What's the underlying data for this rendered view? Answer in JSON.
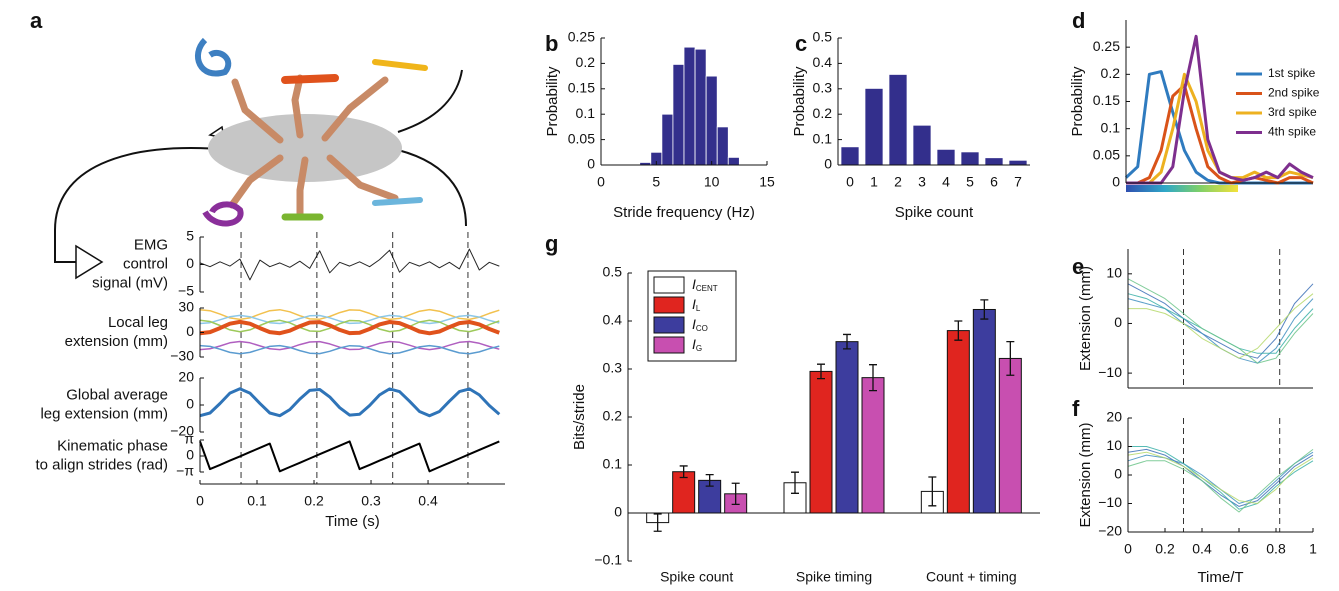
{
  "chart_data": [
    {
      "panel": "a",
      "type": "line",
      "ylabel": [
        "EMG",
        "control",
        "signal (mV)"
      ],
      "x": [
        0,
        0.0175,
        0.035,
        0.0525,
        0.07,
        0.0875,
        0.105,
        0.1225,
        0.14,
        0.1575,
        0.175,
        0.1925,
        0.21,
        0.2275,
        0.245,
        0.2625,
        0.28,
        0.2975,
        0.315,
        0.3325,
        0.35,
        0.3675,
        0.385,
        0.4025,
        0.42,
        0.4375,
        0.455,
        0.4725,
        0.49,
        0.5075,
        0.525
      ],
      "xlim": [
        0,
        0.535
      ],
      "ylim": [
        -5,
        5
      ],
      "yticks": [
        {
          "value": -5,
          "label": "−5"
        },
        0,
        5
      ],
      "vlines": [
        0.072,
        0.205,
        0.338,
        0.47
      ],
      "series": [
        {
          "color": "#000000",
          "width": 1,
          "values": [
            0.3,
            -0.4,
            0.5,
            -0.3,
            1,
            -2.8,
            0.8,
            -0.4,
            0.3,
            -0.5,
            0.6,
            -0.7,
            2.5,
            -1.5,
            0.4,
            -0.3,
            0.5,
            -0.4,
            0.9,
            2.6,
            -1.4,
            0.4,
            -0.3,
            0.5,
            -0.6,
            0.4,
            -0.8,
            2.8,
            -1,
            0.4,
            -0.3
          ]
        }
      ]
    },
    {
      "type": "line",
      "ylabel": [
        "Local leg",
        "extension (mm)"
      ],
      "x": [
        0,
        0.0175,
        0.035,
        0.0525,
        0.07,
        0.0875,
        0.105,
        0.1225,
        0.14,
        0.1575,
        0.175,
        0.1925,
        0.21,
        0.2275,
        0.245,
        0.2625,
        0.28,
        0.2975,
        0.315,
        0.3325,
        0.35,
        0.3675,
        0.385,
        0.4025,
        0.42,
        0.4375,
        0.455,
        0.4725,
        0.49,
        0.5075,
        0.525
      ],
      "xlim": [
        0,
        0.535
      ],
      "ylim": [
        -30,
        30
      ],
      "yticks": [
        {
          "value": -30,
          "label": "−30"
        },
        0,
        30
      ],
      "series": [
        {
          "color": "#f2c14e",
          "width": 1.5,
          "values": [
            27.9,
            26.7,
            22.5,
            17.9,
            16,
            17.9,
            22.5,
            26.7,
            27.9,
            25.3,
            20.6,
            16.7,
            16.3,
            19.6,
            24.4,
            27.7,
            27.3,
            23.4,
            18.7,
            16.1,
            17.3,
            21.5,
            26.1,
            28,
            26.1,
            21.5,
            17.3,
            16.1,
            18.7,
            23.4,
            27.3
          ]
        },
        {
          "color": "#8cc8e8",
          "width": 1.5,
          "values": [
            11,
            12,
            15.5,
            19.4,
            21,
            19.4,
            15.6,
            12,
            11,
            13.2,
            17.2,
            20.4,
            20.8,
            18,
            14,
            11.2,
            11.6,
            14.8,
            18.8,
            21,
            20,
            16.4,
            12.6,
            11,
            12.6,
            16.4,
            20,
            21,
            18.8,
            14.8,
            11.6
          ]
        },
        {
          "color": "#9dc95a",
          "width": 1.5,
          "values": [
            14.9,
            13.5,
            8.6,
            3.2,
            1,
            3.2,
            8.6,
            13.5,
            14.9,
            11.9,
            6.3,
            1.8,
            1.4,
            5.2,
            10.8,
            14.7,
            14.2,
            9.7,
            4.2,
            1.1,
            2.5,
            7.4,
            12.8,
            15,
            12.8,
            7.4,
            2.5,
            1.1,
            4.2,
            9.7,
            14.2
          ]
        },
        {
          "color": "#b05fc0",
          "width": 1.5,
          "values": [
            -21,
            -20,
            -16.5,
            -12.6,
            -11,
            -12.6,
            -16.4,
            -20,
            -21,
            -18.8,
            -14.8,
            -11.6,
            -11.2,
            -14,
            -18,
            -20.8,
            -20.4,
            -17.2,
            -13.2,
            -11,
            -12,
            -15.6,
            -19.4,
            -21,
            -19.4,
            -15.6,
            -12,
            -11,
            -13.2,
            -17.2,
            -20.4
          ]
        },
        {
          "color": "#5a9bd0",
          "width": 1.5,
          "values": [
            -16,
            -17,
            -20.5,
            -24.4,
            -26,
            -24.4,
            -20.6,
            -17,
            -16,
            -18.2,
            -22.2,
            -25.4,
            -25.8,
            -23,
            -19,
            -16.2,
            -16.6,
            -19.8,
            -23.8,
            -26,
            -25,
            -21.4,
            -17.6,
            -16,
            -17.6,
            -21.4,
            -25,
            -26,
            -23.8,
            -19.8,
            -16.6
          ]
        },
        {
          "color": "#e0521c",
          "width": 4,
          "values": [
            -0.9,
            0.5,
            5.4,
            10.8,
            13,
            10.8,
            5.4,
            0.5,
            -0.9,
            2.2,
            7.7,
            12.2,
            12.7,
            8.8,
            3.2,
            -0.7,
            -0.2,
            4.3,
            9.9,
            12.9,
            11.5,
            6.6,
            1.2,
            -1,
            1.2,
            6.6,
            11.5,
            12.9,
            9.9,
            4.3,
            -0.2
          ]
        }
      ]
    },
    {
      "type": "line",
      "ylabel": [
        "Global average",
        "leg extension (mm)"
      ],
      "x": [
        0,
        0.0175,
        0.035,
        0.0525,
        0.07,
        0.0875,
        0.105,
        0.1225,
        0.14,
        0.1575,
        0.175,
        0.1925,
        0.21,
        0.2275,
        0.245,
        0.2625,
        0.28,
        0.2975,
        0.315,
        0.3325,
        0.35,
        0.3675,
        0.385,
        0.4025,
        0.42,
        0.4375,
        0.455,
        0.4725,
        0.49,
        0.5075,
        0.525
      ],
      "xlim": [
        0,
        0.535
      ],
      "ylim": [
        -20,
        20
      ],
      "yticks": [
        {
          "value": -20,
          "label": "−20"
        },
        0,
        20
      ],
      "series": [
        {
          "color": "#2f74b8",
          "width": 3,
          "values": [
            -7.9,
            -5.9,
            1.1,
            8.8,
            12,
            8.8,
            1.2,
            -5.9,
            -7.9,
            -3.4,
            4.4,
            10.8,
            11.5,
            6,
            -2,
            -7.5,
            -6.8,
            -0.4,
            7.5,
            11.9,
            9.9,
            2.8,
            -4.8,
            -8,
            -4.8,
            2.8,
            9.9,
            11.9,
            7.5,
            -0.4,
            -6.8
          ]
        }
      ]
    },
    {
      "type": "line",
      "ylabel": [
        "Kinematic phase",
        "to align strides (rad)"
      ],
      "xlabel": "Time (s)",
      "x": [
        0,
        0.0175,
        0.035,
        0.0525,
        0.07,
        0.0875,
        0.105,
        0.1225,
        0.14,
        0.1575,
        0.175,
        0.1925,
        0.21,
        0.2275,
        0.245,
        0.2625,
        0.28,
        0.2975,
        0.315,
        0.3325,
        0.35,
        0.3675,
        0.385,
        0.4025,
        0.42,
        0.4375,
        0.455,
        0.4725,
        0.49,
        0.5075,
        0.525
      ],
      "xlim": [
        0,
        0.535
      ],
      "xticks": [
        0,
        0.1,
        0.2,
        0.3,
        0.4
      ],
      "ylim": [
        -3.1416,
        3.1416
      ],
      "yticks": [
        {
          "value": -3.1416,
          "label": "−π"
        },
        0,
        {
          "value": 3.1416,
          "label": "π"
        }
      ],
      "series": [
        {
          "color": "#000000",
          "width": 2,
          "values": [
            2.87,
            -2.58,
            -1.75,
            -0.91,
            -0.07,
            0.77,
            1.61,
            2.44,
            -3,
            -2.16,
            -1.33,
            -0.49,
            0.35,
            1.19,
            2.02,
            2.86,
            -2.58,
            -1.75,
            -0.91,
            -0.07,
            0.77,
            1.61,
            2.44,
            -3,
            -2.16,
            -1.33,
            -0.49,
            0.35,
            1.19,
            2.02,
            2.86
          ]
        }
      ]
    },
    {
      "panel": "b",
      "type": "histogram",
      "xlabel": "Stride frequency (Hz)",
      "ylabel": "Probability",
      "bins": [
        3.5,
        4.5,
        5.5,
        6.5,
        7.5,
        8.5,
        9.5,
        10.5,
        11.5,
        12.5
      ],
      "values": [
        0.005,
        0.025,
        0.1,
        0.198,
        0.232,
        0.228,
        0.175,
        0.075,
        0.015
      ],
      "color": "#332f8c",
      "xlim": [
        0,
        15
      ],
      "xticks": [
        0,
        5,
        10,
        15
      ],
      "ylim": [
        0,
        0.25
      ],
      "yticks": [
        0,
        0.05,
        0.1,
        0.15,
        0.2,
        0.25
      ]
    },
    {
      "panel": "c",
      "type": "bar",
      "xlabel": "Spike count",
      "ylabel": "Probability",
      "categories": [
        "0",
        "1",
        "2",
        "3",
        "4",
        "5",
        "6",
        "7"
      ],
      "values": [
        0.07,
        0.3,
        0.355,
        0.155,
        0.06,
        0.05,
        0.027,
        0.017
      ],
      "color": "#332f8c",
      "ylim": [
        0,
        0.5
      ],
      "yticks": [
        0,
        0.1,
        0.2,
        0.3,
        0.4,
        0.5
      ]
    },
    {
      "panel": "d",
      "type": "line",
      "ylabel": "Probability",
      "legend": "upper right",
      "x": [
        0,
        0.0625,
        0.125,
        0.1875,
        0.25,
        0.3125,
        0.375,
        0.4375,
        0.5,
        0.5625,
        0.625,
        0.6875,
        0.75,
        0.8125,
        0.875,
        0.9375,
        1
      ],
      "xlim": [
        0,
        1
      ],
      "ylim": [
        0,
        0.3
      ],
      "yticks": [
        0,
        0.05,
        0.1,
        0.15,
        0.2,
        0.25
      ],
      "series": [
        {
          "name": "1st spike",
          "color": "#2f7bbf",
          "width": 3,
          "values": [
            0.01,
            0.03,
            0.2,
            0.205,
            0.13,
            0.06,
            0.02,
            0.005,
            0,
            0,
            0,
            0,
            0,
            0,
            0,
            0,
            0
          ]
        },
        {
          "name": "2nd spike",
          "color": "#d95319",
          "width": 3,
          "values": [
            0,
            0,
            0.01,
            0.06,
            0.16,
            0.18,
            0.1,
            0.03,
            0.01,
            0,
            0.005,
            0.01,
            0.005,
            0,
            0.01,
            0.01,
            0
          ]
        },
        {
          "name": "3rd spike",
          "color": "#edb120",
          "width": 3,
          "values": [
            0,
            0,
            0,
            0.02,
            0.1,
            0.2,
            0.15,
            0.06,
            0.02,
            0.01,
            0.01,
            0.02,
            0.01,
            0.01,
            0.02,
            0.015,
            0.01
          ]
        },
        {
          "name": "4th spike",
          "color": "#7e2f8e",
          "width": 3,
          "values": [
            0,
            0,
            0,
            0,
            0.03,
            0.17,
            0.27,
            0.08,
            0.02,
            0.01,
            0.005,
            0.01,
            0.02,
            0.01,
            0.035,
            0.02,
            0.01
          ]
        }
      ]
    },
    {
      "panel": "e",
      "type": "line",
      "ylabel": "Extension (mm)",
      "x": [
        0,
        0.1,
        0.2,
        0.3,
        0.4,
        0.5,
        0.6,
        0.7,
        0.8,
        0.9,
        1
      ],
      "xlim": [
        0,
        1
      ],
      "ylim": [
        -13,
        15
      ],
      "yticks": [
        {
          "value": -10,
          "label": "−10"
        },
        0,
        10
      ],
      "vlines": [
        0.3,
        0.82
      ],
      "series": [
        {
          "color": "#3b6fb6",
          "width": 1,
          "values": [
            8,
            6,
            4,
            1,
            -2,
            -4,
            -6,
            -7,
            -3,
            4,
            8
          ]
        },
        {
          "color": "#3f8fc0",
          "width": 1,
          "values": [
            5,
            4,
            3,
            0,
            -2,
            -5,
            -7,
            -8,
            -5,
            1,
            5
          ]
        },
        {
          "color": "#3bb0a8",
          "width": 1,
          "values": [
            6,
            5,
            3,
            1,
            -1,
            -3,
            -5,
            -6,
            -6,
            -1,
            3
          ]
        },
        {
          "color": "#6cc48a",
          "width": 1,
          "values": [
            9,
            7,
            5,
            2,
            -1,
            -3,
            -5,
            -8,
            -7,
            -2,
            2
          ]
        },
        {
          "color": "#b5d86a",
          "width": 1,
          "values": [
            3,
            3,
            2,
            0,
            -3,
            -5,
            -7,
            -5,
            -1,
            3,
            6
          ]
        }
      ]
    },
    {
      "panel": "f",
      "type": "line",
      "ylabel": "Extension (mm)",
      "xlabel": "Time/T",
      "x": [
        0,
        0.1,
        0.2,
        0.3,
        0.4,
        0.5,
        0.6,
        0.7,
        0.8,
        0.9,
        1
      ],
      "xlim": [
        0,
        1
      ],
      "xticks": [
        0,
        0.2,
        0.4,
        0.6,
        0.8,
        1
      ],
      "ylim": [
        -20,
        20
      ],
      "yticks": [
        {
          "value": -20,
          "label": "−20"
        },
        {
          "value": -10,
          "label": "−10"
        },
        0,
        10,
        20
      ],
      "vlines": [
        0.3,
        0.82
      ],
      "series": [
        {
          "color": "#3b6fb6",
          "width": 1,
          "values": [
            8,
            9,
            7,
            3,
            -2,
            -7,
            -11,
            -9,
            -3,
            3,
            7
          ]
        },
        {
          "color": "#3f8fc0",
          "width": 1,
          "values": [
            5,
            7,
            6,
            4,
            0,
            -5,
            -10,
            -8,
            -2,
            4,
            8
          ]
        },
        {
          "color": "#3bb0a8",
          "width": 1,
          "values": [
            10,
            10,
            8,
            4,
            -1,
            -6,
            -12,
            -10,
            -4,
            1,
            5
          ]
        },
        {
          "color": "#6cc48a",
          "width": 1,
          "values": [
            3,
            5,
            5,
            2,
            -2,
            -8,
            -13,
            -7,
            -1,
            4,
            9
          ]
        },
        {
          "color": "#b5d86a",
          "width": 1,
          "values": [
            7,
            8,
            6,
            3,
            -1,
            -5,
            -9,
            -10,
            -5,
            2,
            6
          ]
        }
      ]
    },
    {
      "panel": "g",
      "type": "grouped_bar",
      "ylabel": "Bits/stride",
      "legend": "upper left",
      "categories": [
        "Spike count",
        "Spike timing",
        "Count + timing"
      ],
      "ylim": [
        -0.1,
        0.5
      ],
      "yticks": [
        {
          "value": -0.1,
          "label": "−0.1"
        },
        0,
        0.1,
        0.2,
        0.3,
        0.4,
        0.5
      ],
      "series": [
        {
          "name": "I",
          "subscript": "CENT",
          "color": "#ffffff",
          "values": [
            -0.02,
            0.063,
            0.045
          ],
          "errors": [
            0.018,
            0.022,
            0.03
          ]
        },
        {
          "name": "I",
          "subscript": "L",
          "color": "#e0251f",
          "values": [
            0.086,
            0.295,
            0.38
          ],
          "errors": [
            0.012,
            0.015,
            0.02
          ]
        },
        {
          "name": "I",
          "subscript": "CO",
          "color": "#3d3d9e",
          "values": [
            0.068,
            0.357,
            0.424
          ],
          "errors": [
            0.012,
            0.015,
            0.02
          ]
        },
        {
          "name": "I",
          "subscript": "G",
          "color": "#c84fb0",
          "values": [
            0.04,
            0.282,
            0.322
          ],
          "errors": [
            0.022,
            0.027,
            0.035
          ]
        }
      ]
    }
  ]
}
